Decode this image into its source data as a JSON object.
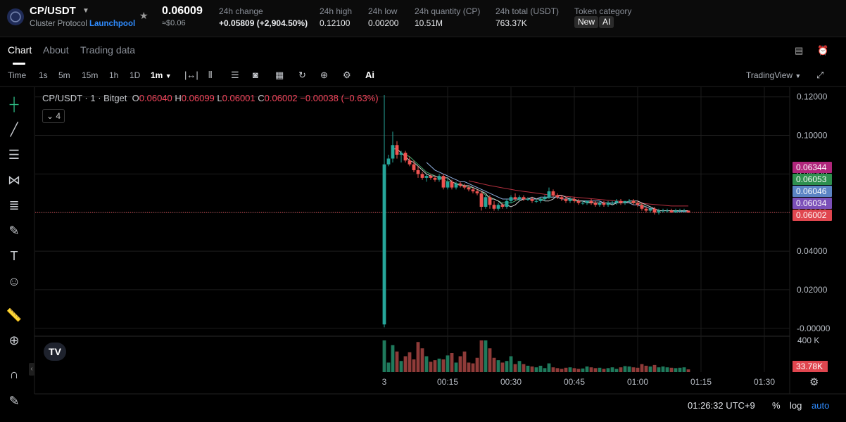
{
  "header": {
    "pair": "CP/USDT",
    "subtitle_prefix": "Cluster Protocol",
    "subtitle_link": "Launchpool",
    "last_price": "0.06009",
    "last_price_usd": "≈$0.06",
    "stats": [
      {
        "label": "24h change",
        "value": "+0.05809 (+2,904.50%)"
      },
      {
        "label": "24h high",
        "value": "0.12100"
      },
      {
        "label": "24h low",
        "value": "0.00200"
      },
      {
        "label": "24h quantity (CP)",
        "value": "10.51M"
      },
      {
        "label": "24h total (USDT)",
        "value": "763.37K"
      },
      {
        "label": "Token category",
        "value": ""
      }
    ],
    "tags": [
      "New",
      "AI"
    ]
  },
  "tabs": [
    "Chart",
    "About",
    "Trading data"
  ],
  "toolbar": {
    "time_label": "Time",
    "intervals": [
      "1s",
      "5m",
      "15m",
      "1h",
      "1D"
    ],
    "active_interval": "1m",
    "ai_label": "Ai",
    "tradingview_label": "TradingView"
  },
  "legend": {
    "symbol": "CP/USDT · 1 · Bitget",
    "o_label": "O",
    "o": "0.06040",
    "h_label": "H",
    "h": "0.06099",
    "l_label": "L",
    "l": "0.06001",
    "c_label": "C",
    "c": "0.06002",
    "change": "−0.00038 (−0.63%)",
    "indicator_count": "4"
  },
  "price_tags": [
    {
      "value": "0.06344",
      "color": "#b0267c"
    },
    {
      "value": "0.06053",
      "color": "#2e8f4e"
    },
    {
      "value": "0.06046",
      "color": "#5b84c4"
    },
    {
      "value": "0.06034",
      "color": "#7b4fb8"
    },
    {
      "value": "0.06002",
      "color": "#e0464f"
    }
  ],
  "volume_axis": {
    "top_label": "400 K",
    "current": "33.78K",
    "current_color": "#e0464f"
  },
  "time_labels": [
    "3",
    "00:15",
    "00:30",
    "00:45",
    "01:00",
    "01:15",
    "01:30"
  ],
  "bottom": {
    "clock": "01:26:32 UTC+9",
    "percent": "%",
    "log": "log",
    "auto": "auto"
  },
  "colors": {
    "up": "#26a69a",
    "down": "#ef5350",
    "ma_red": "#b4303f",
    "ma_green": "#3fa46a",
    "ma_blue": "#8fb0e0",
    "ma_white": "#d0d0d0"
  },
  "chart_data": {
    "type": "candlestick",
    "interval": "1m",
    "y_axis": {
      "ticks": [
        "0.12000",
        "0.10000",
        "0.08000",
        "0.06000",
        "0.04000",
        "0.02000",
        "-0.00000"
      ],
      "range": [
        -0.003,
        0.125
      ]
    },
    "x_axis": {
      "ticks": [
        "3",
        "00:15",
        "00:30",
        "00:45",
        "01:00",
        "01:15",
        "01:30"
      ],
      "start_minute": 0,
      "tick_minutes": [
        0,
        15,
        30,
        45,
        60,
        75,
        90
      ]
    },
    "candles": [
      [
        0.002,
        0.121,
        0.0005,
        0.085
      ],
      [
        0.085,
        0.09,
        0.084,
        0.088
      ],
      [
        0.088,
        0.102,
        0.086,
        0.095
      ],
      [
        0.095,
        0.097,
        0.088,
        0.09
      ],
      [
        0.09,
        0.092,
        0.086,
        0.091
      ],
      [
        0.091,
        0.092,
        0.086,
        0.087
      ],
      [
        0.087,
        0.089,
        0.084,
        0.085
      ],
      [
        0.085,
        0.087,
        0.081,
        0.082
      ],
      [
        0.082,
        0.084,
        0.078,
        0.08
      ],
      [
        0.08,
        0.081,
        0.077,
        0.078
      ],
      [
        0.078,
        0.08,
        0.076,
        0.079
      ],
      [
        0.079,
        0.08,
        0.077,
        0.078
      ],
      [
        0.078,
        0.079,
        0.076,
        0.077
      ],
      [
        0.077,
        0.08,
        0.076,
        0.079
      ],
      [
        0.079,
        0.08,
        0.072,
        0.073
      ],
      [
        0.073,
        0.078,
        0.072,
        0.076
      ],
      [
        0.076,
        0.077,
        0.072,
        0.073
      ],
      [
        0.073,
        0.076,
        0.072,
        0.075
      ],
      [
        0.075,
        0.076,
        0.073,
        0.074
      ],
      [
        0.074,
        0.075,
        0.072,
        0.073
      ],
      [
        0.073,
        0.074,
        0.071,
        0.072
      ],
      [
        0.072,
        0.073,
        0.07,
        0.071
      ],
      [
        0.071,
        0.072,
        0.069,
        0.07
      ],
      [
        0.07,
        0.071,
        0.061,
        0.063
      ],
      [
        0.063,
        0.069,
        0.062,
        0.068
      ],
      [
        0.068,
        0.069,
        0.062,
        0.064
      ],
      [
        0.064,
        0.066,
        0.061,
        0.062
      ],
      [
        0.062,
        0.065,
        0.061,
        0.064
      ],
      [
        0.064,
        0.065,
        0.062,
        0.063
      ],
      [
        0.063,
        0.067,
        0.062,
        0.066
      ],
      [
        0.066,
        0.069,
        0.065,
        0.068
      ],
      [
        0.068,
        0.07,
        0.066,
        0.067
      ],
      [
        0.067,
        0.069,
        0.066,
        0.068
      ],
      [
        0.068,
        0.069,
        0.066,
        0.067
      ],
      [
        0.067,
        0.068,
        0.066,
        0.067
      ],
      [
        0.067,
        0.068,
        0.065,
        0.066
      ],
      [
        0.066,
        0.067,
        0.065,
        0.066
      ],
      [
        0.066,
        0.068,
        0.065,
        0.067
      ],
      [
        0.067,
        0.069,
        0.066,
        0.068
      ],
      [
        0.068,
        0.073,
        0.067,
        0.071
      ],
      [
        0.071,
        0.072,
        0.068,
        0.069
      ],
      [
        0.069,
        0.07,
        0.067,
        0.068
      ],
      [
        0.068,
        0.069,
        0.066,
        0.067
      ],
      [
        0.067,
        0.068,
        0.065,
        0.066
      ],
      [
        0.066,
        0.068,
        0.065,
        0.067
      ],
      [
        0.067,
        0.068,
        0.065,
        0.066
      ],
      [
        0.066,
        0.067,
        0.064,
        0.065
      ],
      [
        0.065,
        0.066,
        0.064,
        0.065
      ],
      [
        0.065,
        0.066,
        0.064,
        0.066
      ],
      [
        0.066,
        0.067,
        0.064,
        0.065
      ],
      [
        0.065,
        0.066,
        0.063,
        0.064
      ],
      [
        0.064,
        0.066,
        0.063,
        0.065
      ],
      [
        0.065,
        0.066,
        0.063,
        0.064
      ],
      [
        0.064,
        0.066,
        0.063,
        0.065
      ],
      [
        0.065,
        0.066,
        0.064,
        0.065
      ],
      [
        0.065,
        0.067,
        0.064,
        0.066
      ],
      [
        0.066,
        0.067,
        0.064,
        0.065
      ],
      [
        0.065,
        0.066,
        0.064,
        0.066
      ],
      [
        0.066,
        0.067,
        0.065,
        0.066
      ],
      [
        0.066,
        0.067,
        0.064,
        0.065
      ],
      [
        0.065,
        0.066,
        0.063,
        0.064
      ],
      [
        0.064,
        0.065,
        0.061,
        0.062
      ],
      [
        0.062,
        0.063,
        0.06,
        0.061
      ],
      [
        0.061,
        0.063,
        0.06,
        0.062
      ],
      [
        0.062,
        0.063,
        0.059,
        0.06
      ],
      [
        0.06,
        0.062,
        0.059,
        0.061
      ],
      [
        0.061,
        0.062,
        0.06,
        0.061
      ],
      [
        0.061,
        0.062,
        0.06,
        0.061
      ],
      [
        0.061,
        0.062,
        0.06,
        0.06
      ],
      [
        0.06,
        0.062,
        0.06,
        0.061
      ],
      [
        0.061,
        0.062,
        0.06,
        0.061
      ],
      [
        0.061,
        0.062,
        0.06,
        0.061
      ],
      [
        0.061,
        0.061,
        0.06,
        0.06
      ]
    ],
    "candle_format": [
      "open",
      "high",
      "low",
      "close"
    ],
    "volume_thousands": [
      400,
      120,
      340,
      260,
      140,
      200,
      250,
      160,
      380,
      300,
      200,
      130,
      150,
      170,
      160,
      210,
      240,
      120,
      200,
      260,
      120,
      110,
      180,
      420,
      450,
      300,
      180,
      150,
      120,
      140,
      200,
      100,
      140,
      100,
      80,
      70,
      60,
      80,
      50,
      110,
      60,
      50,
      40,
      55,
      60,
      50,
      40,
      45,
      70,
      60,
      50,
      55,
      40,
      50,
      60,
      40,
      60,
      75,
      70,
      60,
      55,
      100,
      80,
      70,
      90,
      60,
      70,
      60,
      55,
      50,
      55,
      60,
      34
    ],
    "moving_averages": [
      {
        "color": "#b4303f",
        "start_index": 20,
        "values": [
          0.0765,
          0.076,
          0.0755,
          0.075,
          0.0745,
          0.074,
          0.0736,
          0.0732,
          0.0728,
          0.0724,
          0.072,
          0.0716,
          0.0713,
          0.071,
          0.0707,
          0.0704,
          0.0701,
          0.0698,
          0.0695,
          0.0692,
          0.069,
          0.0688,
          0.0686,
          0.0684,
          0.0682,
          0.068,
          0.0678,
          0.0676,
          0.0674,
          0.0672,
          0.067,
          0.0668,
          0.0666,
          0.0664,
          0.0662,
          0.066,
          0.0658,
          0.0656,
          0.0654,
          0.0652,
          0.065,
          0.0648,
          0.0646,
          0.0644,
          0.0642,
          0.064,
          0.0638,
          0.0636,
          0.0634,
          0.0634,
          0.0634,
          0.0634,
          0.0634
        ]
      },
      {
        "color": "#3fa46a",
        "start_index": 5,
        "values": [
          0.09,
          0.089,
          0.087,
          0.085,
          0.083,
          0.081,
          0.08,
          0.079,
          0.078,
          0.077,
          0.076,
          0.076,
          0.075,
          0.075,
          0.074,
          0.073,
          0.073,
          0.072,
          0.071,
          0.069,
          0.068,
          0.067,
          0.066,
          0.065,
          0.065,
          0.065,
          0.066,
          0.067,
          0.067,
          0.067,
          0.067,
          0.067,
          0.067,
          0.067,
          0.068,
          0.068,
          0.068,
          0.067,
          0.067,
          0.067,
          0.066,
          0.066,
          0.066,
          0.066,
          0.065,
          0.065,
          0.065,
          0.065,
          0.065,
          0.065,
          0.065,
          0.065,
          0.065,
          0.065,
          0.065,
          0.065,
          0.064,
          0.063,
          0.062,
          0.062,
          0.061,
          0.061,
          0.061,
          0.061,
          0.061,
          0.061,
          0.0605,
          0.0605
        ]
      },
      {
        "color": "#8fb0e0",
        "start_index": 10,
        "values": [
          0.086,
          0.084,
          0.082,
          0.081,
          0.08,
          0.079,
          0.078,
          0.077,
          0.076,
          0.076,
          0.075,
          0.074,
          0.073,
          0.072,
          0.071,
          0.07,
          0.069,
          0.068,
          0.067,
          0.067,
          0.067,
          0.067,
          0.067,
          0.067,
          0.067,
          0.067,
          0.067,
          0.068,
          0.068,
          0.068,
          0.068,
          0.068,
          0.067,
          0.067,
          0.067,
          0.067,
          0.066,
          0.066,
          0.066,
          0.066,
          0.066,
          0.066,
          0.065,
          0.065,
          0.065,
          0.065,
          0.065,
          0.065,
          0.065,
          0.064,
          0.064,
          0.063,
          0.063,
          0.062,
          0.062,
          0.061,
          0.061,
          0.061,
          0.061,
          0.0605,
          0.0605,
          0.0605,
          0.0605
        ]
      },
      {
        "color": "#d0d0d0",
        "start_index": 2,
        "values": [
          0.093,
          0.093,
          0.091,
          0.089,
          0.087,
          0.086,
          0.084,
          0.082,
          0.08,
          0.079,
          0.079,
          0.078,
          0.078,
          0.078,
          0.076,
          0.075,
          0.074,
          0.074,
          0.074,
          0.073,
          0.072,
          0.071,
          0.07,
          0.067,
          0.067,
          0.066,
          0.064,
          0.064,
          0.063,
          0.064,
          0.066,
          0.067,
          0.067,
          0.068,
          0.067,
          0.067,
          0.066,
          0.066,
          0.067,
          0.069,
          0.069,
          0.068,
          0.067,
          0.067,
          0.066,
          0.066,
          0.065,
          0.065,
          0.065,
          0.065,
          0.065,
          0.065,
          0.064,
          0.065,
          0.065,
          0.065,
          0.066,
          0.066,
          0.066,
          0.065,
          0.064,
          0.063,
          0.062,
          0.061,
          0.061,
          0.061,
          0.061,
          0.061,
          0.061,
          0.061,
          0.061
        ]
      }
    ]
  }
}
